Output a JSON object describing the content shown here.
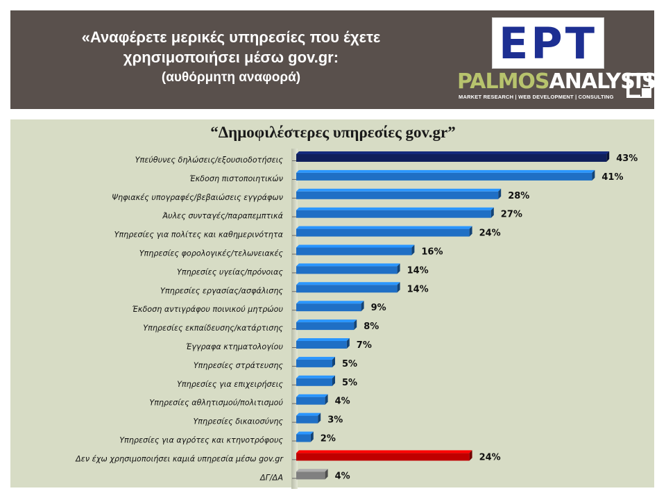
{
  "header": {
    "title_line1": "«Αναφέρετε μερικές υπηρεσίες που έχετε",
    "title_line2": "χρησιμοποιήσει μέσω gov.gr:",
    "title_line3": "(αυθόρμητη αναφορά)"
  },
  "logos": {
    "ert": "ΕΡΤ",
    "palmos_part1": "PALMOS",
    "palmos_part2": "ANALYSIS",
    "palmos_tagline": "MARKET RESEARCH | WEB DEVELOPMENT | CONSULTING"
  },
  "colors": {
    "header_bg": "#59504c",
    "panel_bg": "#d7dcc5",
    "bar_first": "#0f1f5c",
    "bar_default": "#1f6fc5",
    "bar_none": "#c00000",
    "bar_dk": "#808080"
  },
  "chart_data": {
    "type": "bar",
    "orientation": "horizontal",
    "title": "“Δημοφιλέστερες υπηρεσίες gov.gr”",
    "value_suffix": "%",
    "xlim": [
      0,
      45
    ],
    "grid": false,
    "categories": [
      "Υπεύθυνες δηλώσεις/εξουσιοδοτήσεις",
      "Έκδοση πιστοποιητικών",
      "Ψηφιακές υπογραφές/βεβαιώσεις εγγράφων",
      "Άυλες συνταγές/παραπεμπτικά",
      "Υπηρεσίες για πολίτες και καθημερινότητα",
      "Υπηρεσίες φορολογικές/τελωνειακές",
      "Υπηρεσίες υγείας/πρόνοιας",
      "Υπηρεσίες εργασίας/ασφάλισης",
      "Έκδοση αντιγράφου ποινικού μητρώου",
      "Υπηρεσίες εκπαίδευσης/κατάρτισης",
      "Έγγραφα κτηματολογίου",
      "Υπηρεσίες στράτευσης",
      "Υπηρεσίες για επιχειρήσεις",
      "Υπηρεσίες αθλητισμού/πολιτισμού",
      "Υπηρεσίες δικαιοσύνης",
      "Υπηρεσίες για αγρότες και κτηνοτρόφους",
      "Δεν έχω χρησιμοποιήσει καμιά υπηρεσία μέσω gov.gr",
      "ΔΓ/ΔΑ"
    ],
    "values": [
      43,
      41,
      28,
      27,
      24,
      16,
      14,
      14,
      9,
      8,
      7,
      5,
      5,
      4,
      3,
      2,
      24,
      4
    ],
    "bar_colors": [
      "#0f1f5c",
      "#1f6fc5",
      "#1f6fc5",
      "#1f6fc5",
      "#1f6fc5",
      "#1f6fc5",
      "#1f6fc5",
      "#1f6fc5",
      "#1f6fc5",
      "#1f6fc5",
      "#1f6fc5",
      "#1f6fc5",
      "#1f6fc5",
      "#1f6fc5",
      "#1f6fc5",
      "#1f6fc5",
      "#c00000",
      "#808080"
    ]
  }
}
